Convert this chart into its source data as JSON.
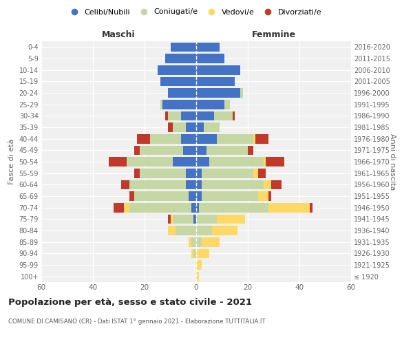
{
  "age_groups": [
    "100+",
    "95-99",
    "90-94",
    "85-89",
    "80-84",
    "75-79",
    "70-74",
    "65-69",
    "60-64",
    "55-59",
    "50-54",
    "45-49",
    "40-44",
    "35-39",
    "30-34",
    "25-29",
    "20-24",
    "15-19",
    "10-14",
    "5-9",
    "0-4"
  ],
  "birth_years": [
    "≤ 1920",
    "1921-1925",
    "1926-1930",
    "1931-1935",
    "1936-1940",
    "1941-1945",
    "1946-1950",
    "1951-1955",
    "1956-1960",
    "1961-1965",
    "1966-1970",
    "1971-1975",
    "1976-1980",
    "1981-1985",
    "1986-1990",
    "1991-1995",
    "1996-2000",
    "2001-2005",
    "2006-2010",
    "2011-2015",
    "2016-2020"
  ],
  "males": {
    "celibe": [
      0,
      0,
      0,
      0,
      0,
      1,
      2,
      3,
      4,
      4,
      9,
      5,
      6,
      4,
      6,
      13,
      11,
      14,
      15,
      12,
      10
    ],
    "coniugato": [
      0,
      0,
      1,
      2,
      8,
      8,
      24,
      21,
      22,
      18,
      18,
      17,
      12,
      5,
      5,
      1,
      0,
      0,
      0,
      0,
      0
    ],
    "vedovo": [
      0,
      0,
      1,
      1,
      3,
      1,
      2,
      0,
      0,
      0,
      0,
      0,
      0,
      0,
      0,
      0,
      0,
      0,
      0,
      0,
      0
    ],
    "divorziato": [
      0,
      0,
      0,
      0,
      0,
      1,
      4,
      2,
      3,
      2,
      7,
      2,
      5,
      2,
      1,
      0,
      0,
      0,
      0,
      0,
      0
    ]
  },
  "females": {
    "nubile": [
      0,
      0,
      0,
      0,
      0,
      0,
      1,
      2,
      2,
      2,
      5,
      4,
      8,
      3,
      7,
      11,
      17,
      15,
      17,
      11,
      9
    ],
    "coniugata": [
      0,
      0,
      0,
      2,
      6,
      8,
      27,
      22,
      24,
      20,
      21,
      16,
      14,
      6,
      7,
      2,
      1,
      0,
      0,
      0,
      0
    ],
    "vedova": [
      1,
      2,
      5,
      7,
      10,
      11,
      16,
      4,
      3,
      2,
      1,
      0,
      1,
      0,
      0,
      0,
      0,
      0,
      0,
      0,
      0
    ],
    "divorziata": [
      0,
      0,
      0,
      0,
      0,
      0,
      1,
      1,
      4,
      3,
      7,
      2,
      5,
      0,
      1,
      0,
      0,
      0,
      0,
      0,
      0
    ]
  },
  "colors": {
    "celibe_nubile": "#4472c4",
    "coniugato_a": "#c5d8a4",
    "vedovo_a": "#ffd966",
    "divorziato_a": "#c0392b"
  },
  "title": "Popolazione per età, sesso e stato civile - 2021",
  "subtitle": "COMUNE DI CAMISANO (CR) - Dati ISTAT 1° gennaio 2021 - Elaborazione TUTTITALIA.IT",
  "xlabel_left": "Maschi",
  "xlabel_right": "Femmine",
  "ylabel_left": "Fasce di età",
  "ylabel_right": "Anni di nascita",
  "xlim": 60,
  "bg_color": "#f0f0f0",
  "legend_labels": [
    "Celibi/Nubili",
    "Coniugati/e",
    "Vedovi/e",
    "Divorziati/e"
  ]
}
